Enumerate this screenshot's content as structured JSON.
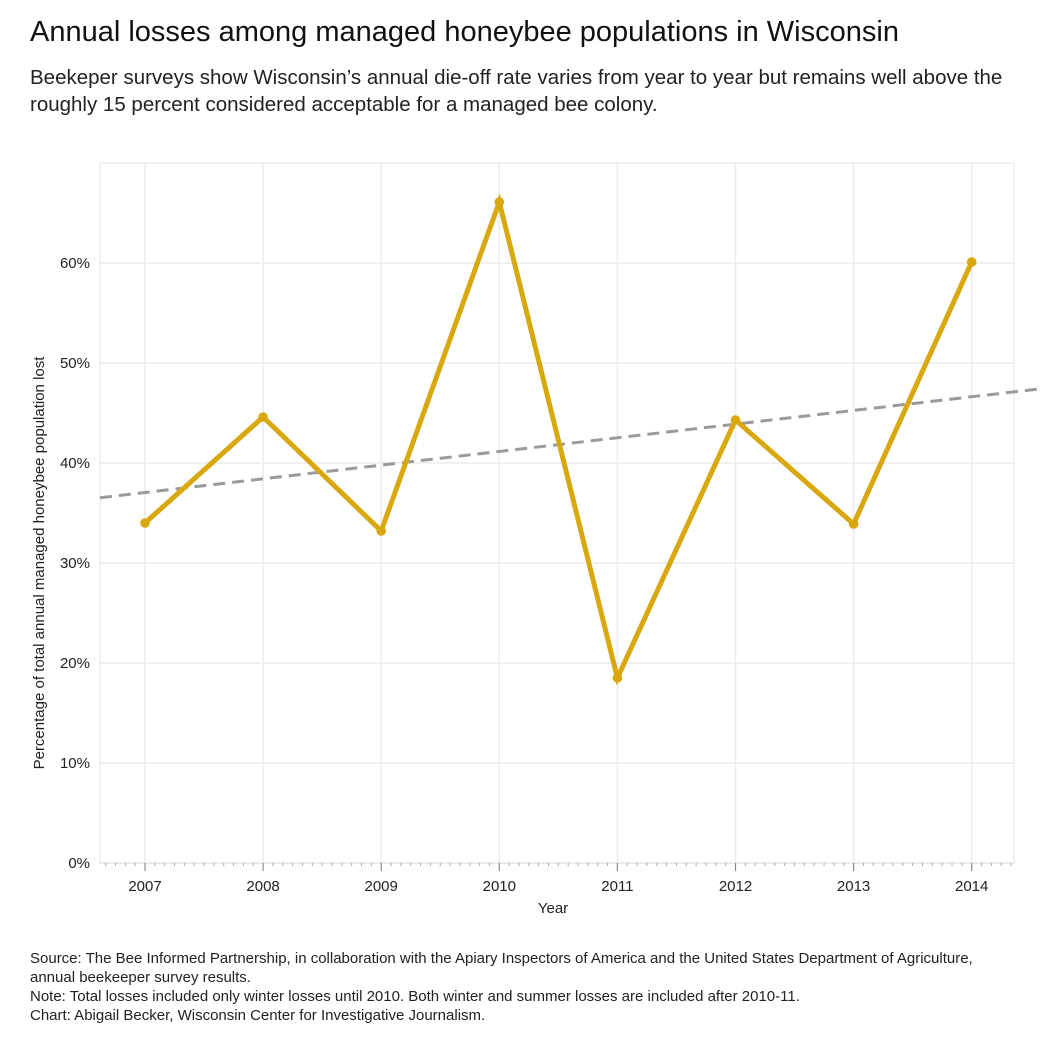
{
  "header": {
    "title": "Annual losses among managed honeybee populations in Wisconsin",
    "subtitle": "Beekeper surveys show Wisconsin’s annual die-off rate varies from year to year but remains well above the roughly 15 percent considered acceptable for a managed bee colony."
  },
  "chart_data": {
    "type": "line",
    "x": [
      "2007",
      "2008",
      "2009",
      "2010",
      "2011",
      "2012",
      "2013",
      "2014"
    ],
    "series": [
      {
        "values": [
          34,
          44.6,
          33.2,
          66.1,
          18.5,
          44.3,
          33.9,
          60.1
        ],
        "color": "#d9a80f"
      }
    ],
    "trendline": {
      "style": "dashed",
      "color": "#9a9a9a"
    },
    "xlabel": "Year",
    "ylabel": "Percentage of total annual managed honeybee population lost",
    "ylim": [
      0,
      70
    ],
    "yticks": [
      "0%",
      "10%",
      "20%",
      "30%",
      "40%",
      "50%",
      "60%"
    ],
    "ytick_values": [
      0,
      10,
      20,
      30,
      40,
      50,
      60
    ],
    "grid": true,
    "legend": "none"
  },
  "footer": {
    "source": "Source: The Bee Informed Partnership, in collaboration with the Apiary Inspectors of America and the United States Department of Agriculture, annual beekeeper survey results.",
    "note": "Note: Total losses included only winter losses until 2010. Both winter and summer losses are included after 2010-11.",
    "credit": "Chart: Abigail Becker, Wisconsin Center for Investigative Journalism."
  }
}
